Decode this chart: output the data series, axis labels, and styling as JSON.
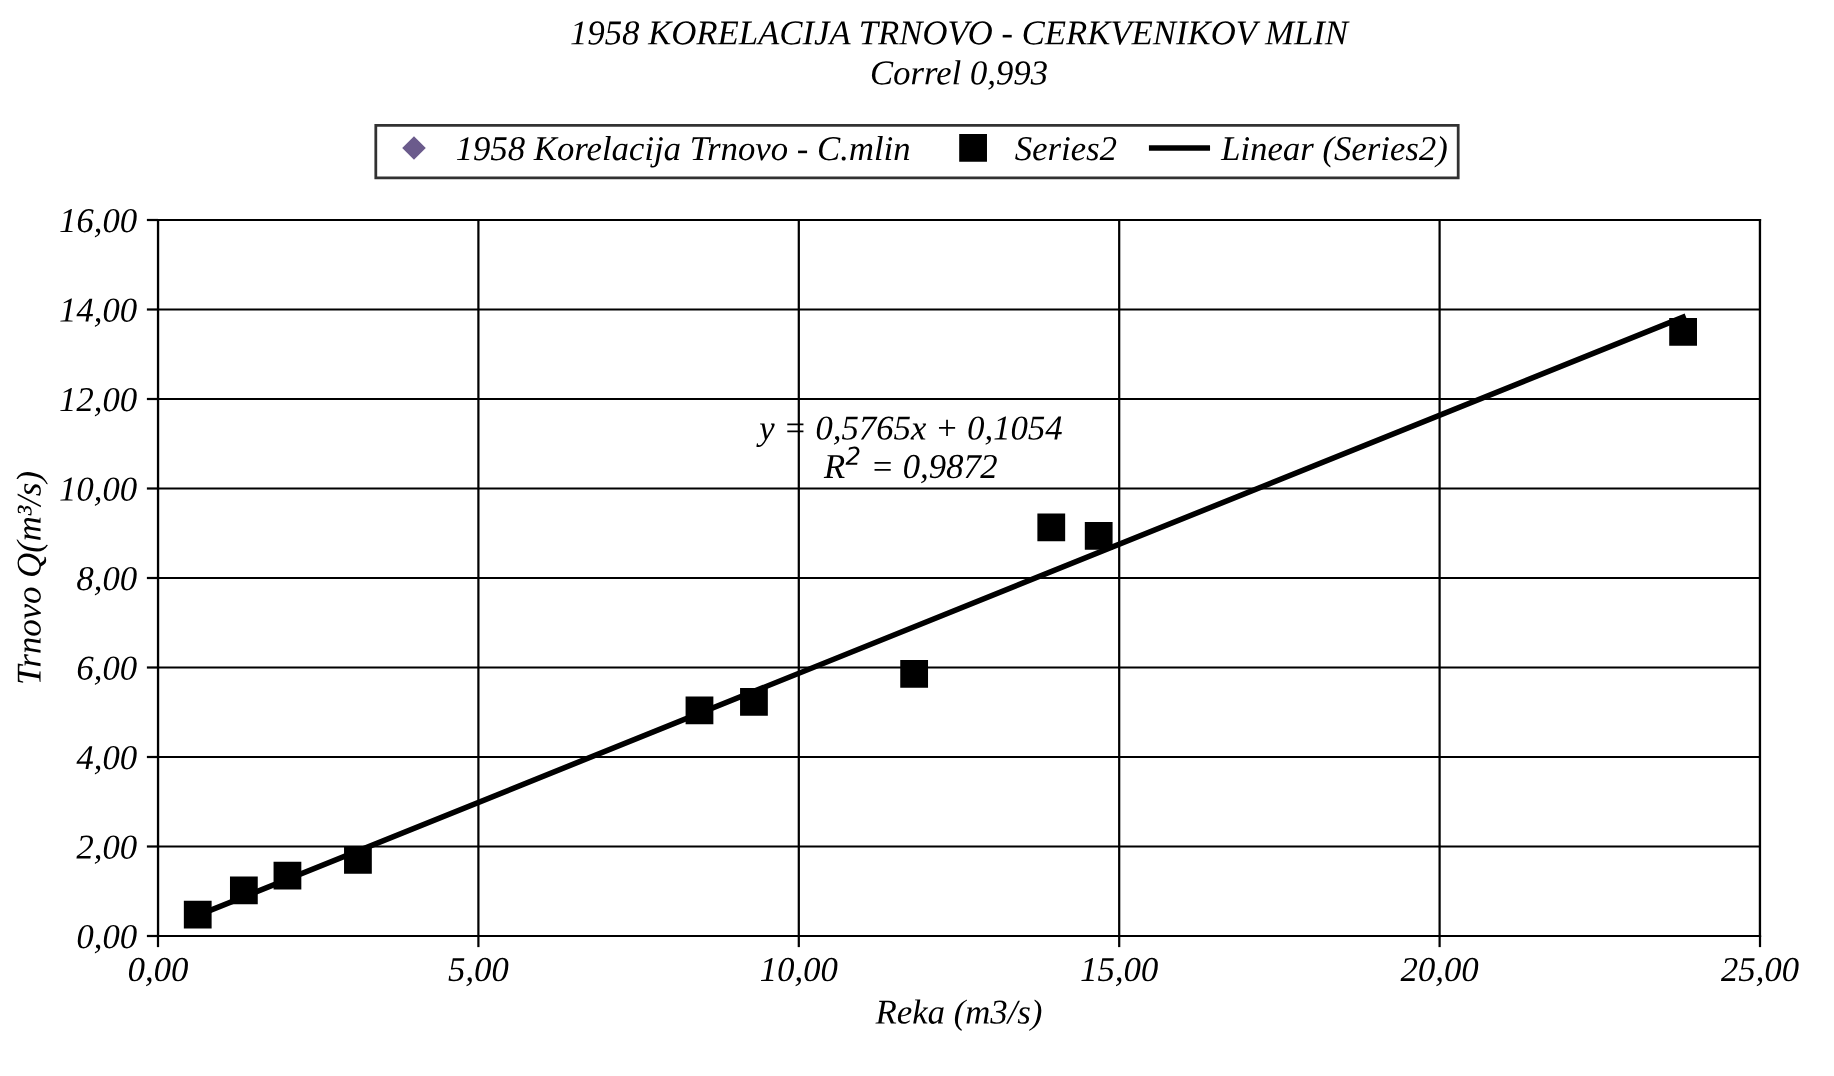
{
  "chart_data": {
    "type": "scatter",
    "title": "1958 KORELACIJA TRNOVO - CERKVENIKOV MLIN",
    "subtitle": "Correl 0,993",
    "xlabel": "Reka (m3/s)",
    "ylabel": "Trnovo Q(m³/s)",
    "annotations": [
      "y = 0,5765x + 0,1054",
      "R$^{2}$ = 0,9872"
    ],
    "series": [
      {
        "name": "1958 Korelacija Trnovo - C.mlin",
        "color": "#6b5b8c",
        "marker": "diamond"
      },
      {
        "name": "Series2",
        "color": "#000000",
        "marker": "square",
        "x": [
          0.62,
          1.34,
          2.02,
          3.12,
          8.45,
          9.3,
          11.8,
          13.94,
          14.68,
          23.8
        ],
        "values": [
          0.48,
          1.02,
          1.35,
          1.7,
          5.04,
          5.23,
          5.86,
          9.13,
          8.94,
          13.5
        ]
      },
      {
        "name": "Linear (Series2)",
        "type": "line",
        "color": "#000000",
        "marker": "none",
        "line_style": "solid",
        "x": [
          0.62,
          23.8
        ],
        "values": [
          0.46,
          13.83
        ]
      }
    ],
    "xlim": [
      0,
      25
    ],
    "ylim": [
      0,
      16
    ],
    "xticks": [
      {
        "value": 0,
        "label": "0,00"
      },
      {
        "value": 5,
        "label": "5,00"
      },
      {
        "value": 10,
        "label": "10,00"
      },
      {
        "value": 15,
        "label": "15,00"
      },
      {
        "value": 20,
        "label": "20,00"
      },
      {
        "value": 25,
        "label": "25,00"
      }
    ],
    "yticks": [
      {
        "value": 0,
        "label": "0,00"
      },
      {
        "value": 2,
        "label": "2,00"
      },
      {
        "value": 4,
        "label": "4,00"
      },
      {
        "value": 6,
        "label": "6,00"
      },
      {
        "value": 8,
        "label": "8,00"
      },
      {
        "value": 10,
        "label": "10,00"
      },
      {
        "value": 12,
        "label": "12,00"
      },
      {
        "value": 14,
        "label": "14,00"
      },
      {
        "value": 16,
        "label": "16,00"
      }
    ],
    "grid": true,
    "legend": "top"
  }
}
